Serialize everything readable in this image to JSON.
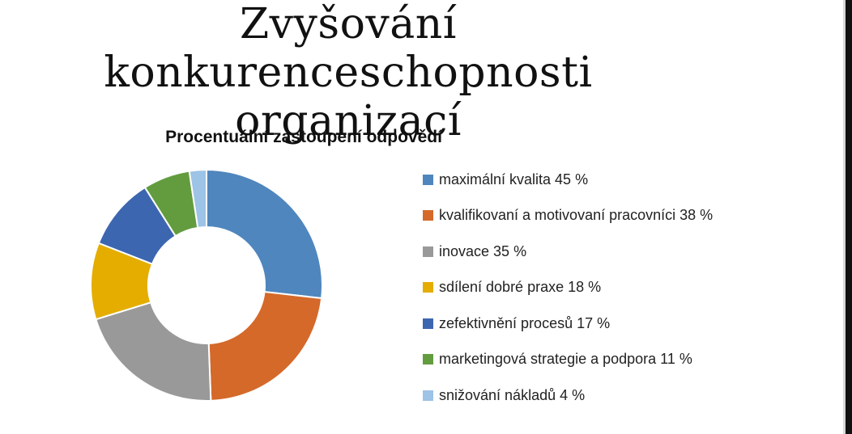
{
  "slide": {
    "title_line1": "Zvyšování konkurenceschopnosti",
    "title_line2": "organizací"
  },
  "chart_data": {
    "type": "doughnut",
    "title": "Procentuální zastoupení odpovědí",
    "legend_position": "right",
    "series": [
      {
        "label": "maximální kvalita 45 %",
        "value": 45,
        "color": "#4f86bd"
      },
      {
        "label": "kvalifikovaní a motivovaní pracovníci 38 %",
        "value": 38,
        "color": "#d4692a"
      },
      {
        "label": "inovace 35 %",
        "value": 35,
        "color": "#999999"
      },
      {
        "label": "sdílení dobré praxe 18 %",
        "value": 18,
        "color": "#e4ad00"
      },
      {
        "label": "zefektivnění procesů 17 %",
        "value": 17,
        "color": "#3d66b0"
      },
      {
        "label": "marketingová strategie a podpora 11 %",
        "value": 11,
        "color": "#639c3e"
      },
      {
        "label": "snižování nákladů 4 %",
        "value": 4,
        "color": "#9dc3e6"
      }
    ]
  }
}
